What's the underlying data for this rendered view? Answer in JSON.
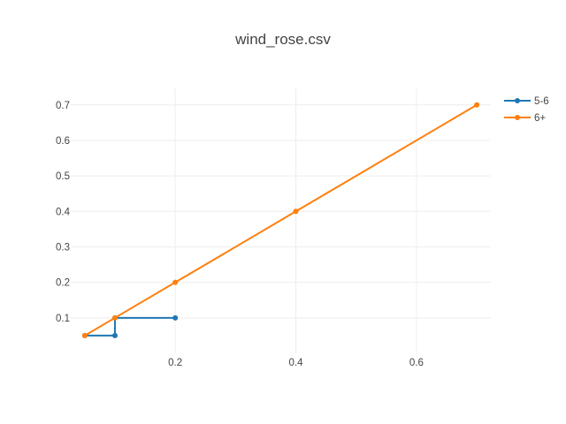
{
  "chart_data": {
    "type": "line",
    "title": "wind_rose.csv",
    "xlabel": "",
    "ylabel": "",
    "xlim": [
      0.0267,
      0.7233
    ],
    "ylim": [
      0.0,
      0.7467
    ],
    "x_ticks": [
      0.2,
      0.4,
      0.6
    ],
    "x_tick_labels": [
      "0.2",
      "0.4",
      "0.6"
    ],
    "y_ticks": [
      0.1,
      0.2,
      0.3,
      0.4,
      0.5,
      0.6,
      0.7
    ],
    "y_tick_labels": [
      "0.1",
      "0.2",
      "0.3",
      "0.4",
      "0.5",
      "0.6",
      "0.7"
    ],
    "grid": true,
    "legend_position": "top-right",
    "series": [
      {
        "name": "5-6",
        "color": "#1f77b4",
        "x": [
          0.05,
          0.1,
          0.1,
          0.2
        ],
        "y": [
          0.05,
          0.05,
          0.1,
          0.1
        ]
      },
      {
        "name": "6+",
        "color": "#ff7f0e",
        "x": [
          0.05,
          0.1,
          0.2,
          0.4,
          0.7
        ],
        "y": [
          0.05,
          0.1,
          0.2,
          0.4,
          0.7
        ]
      }
    ]
  }
}
